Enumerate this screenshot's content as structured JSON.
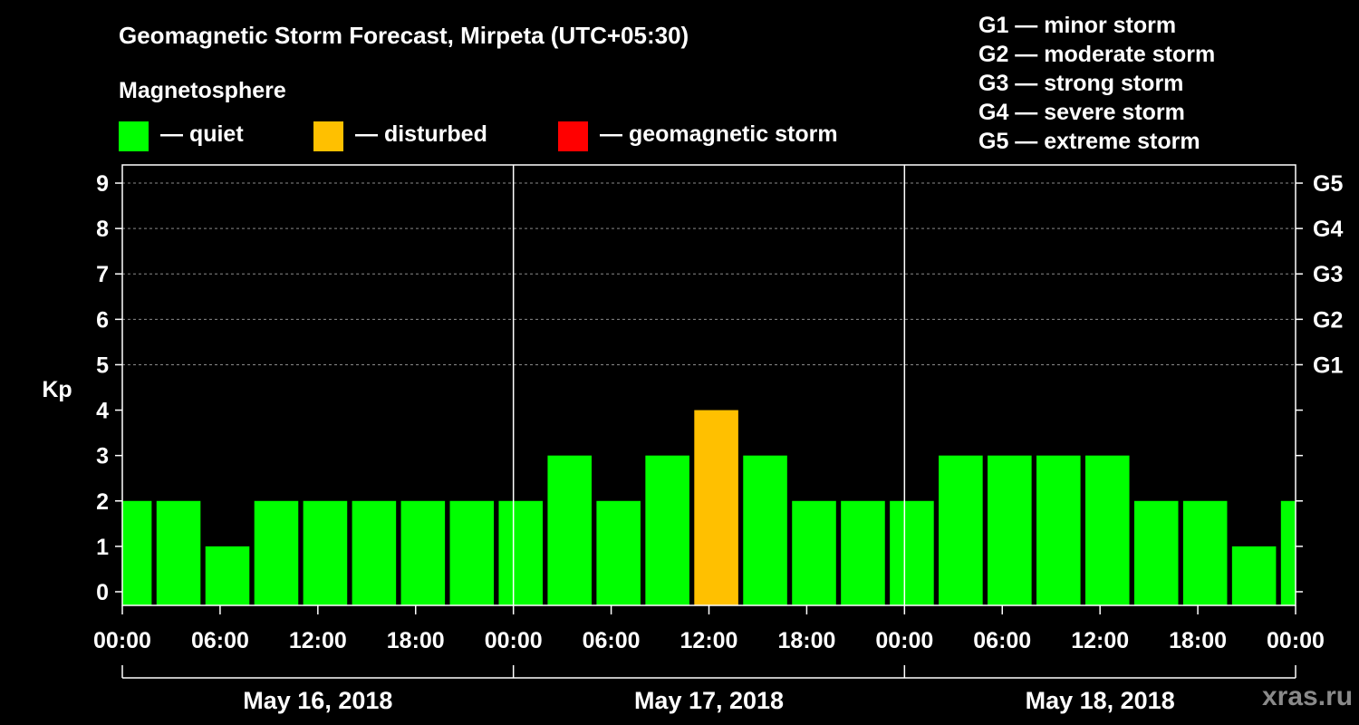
{
  "header": {
    "title": "Geomagnetic Storm Forecast, Mirpeta (UTC+05:30)",
    "magnetosphere_label": "Magnetosphere",
    "legend": [
      {
        "label": "— quiet",
        "color": "#00ff00"
      },
      {
        "label": "— disturbed",
        "color": "#ffc000"
      },
      {
        "label": "— geomagnetic storm",
        "color": "#ff0000"
      }
    ],
    "storm_scale": [
      "G1 — minor storm",
      "G2 — moderate storm",
      "G3 — strong storm",
      "G4 — severe storm",
      "G5 — extreme storm"
    ]
  },
  "watermark": "xras.ru",
  "chart_data": {
    "type": "bar",
    "title": "Geomagnetic Storm Forecast, Mirpeta (UTC+05:30)",
    "ylabel": "Kp",
    "ylim": [
      -0.3,
      9.4
    ],
    "y_ticks": [
      "0",
      "1",
      "2",
      "3",
      "4",
      "5",
      "6",
      "7",
      "8",
      "9"
    ],
    "right_ticks": [
      {
        "kp": 5,
        "label": "G1"
      },
      {
        "kp": 6,
        "label": "G2"
      },
      {
        "kp": 7,
        "label": "G3"
      },
      {
        "kp": 8,
        "label": "G4"
      },
      {
        "kp": 9,
        "label": "G5"
      }
    ],
    "x_range_hours": [
      0,
      72
    ],
    "x_tick_hours": [
      0,
      6,
      12,
      18,
      24,
      30,
      36,
      42,
      48,
      54,
      60,
      66,
      72
    ],
    "x_tick_labels": [
      "00:00",
      "06:00",
      "12:00",
      "18:00",
      "00:00",
      "06:00",
      "12:00",
      "18:00",
      "00:00",
      "06:00",
      "12:00",
      "18:00",
      "00:00"
    ],
    "days": [
      "May 16, 2018",
      "May 17, 2018",
      "May 18, 2018"
    ],
    "day_boundaries_hours": [
      24,
      48
    ],
    "grid_kp": [
      5,
      6,
      7,
      8,
      9
    ],
    "colors": {
      "quiet": "#00ff00",
      "disturbed": "#ffc000",
      "storm": "#ff0000"
    },
    "bars": [
      {
        "start": 0,
        "end": 1.8,
        "kp": 2,
        "level": "quiet"
      },
      {
        "start": 2.1,
        "end": 4.8,
        "kp": 2,
        "level": "quiet"
      },
      {
        "start": 5.1,
        "end": 7.8,
        "kp": 1,
        "level": "quiet"
      },
      {
        "start": 8.1,
        "end": 10.8,
        "kp": 2,
        "level": "quiet"
      },
      {
        "start": 11.1,
        "end": 13.8,
        "kp": 2,
        "level": "quiet"
      },
      {
        "start": 14.1,
        "end": 16.8,
        "kp": 2,
        "level": "quiet"
      },
      {
        "start": 17.1,
        "end": 19.8,
        "kp": 2,
        "level": "quiet"
      },
      {
        "start": 20.1,
        "end": 22.8,
        "kp": 2,
        "level": "quiet"
      },
      {
        "start": 23.1,
        "end": 25.8,
        "kp": 2,
        "level": "quiet"
      },
      {
        "start": 26.1,
        "end": 28.8,
        "kp": 3,
        "level": "quiet"
      },
      {
        "start": 29.1,
        "end": 31.8,
        "kp": 2,
        "level": "quiet"
      },
      {
        "start": 32.1,
        "end": 34.8,
        "kp": 3,
        "level": "quiet"
      },
      {
        "start": 35.1,
        "end": 37.8,
        "kp": 4,
        "level": "disturbed"
      },
      {
        "start": 38.1,
        "end": 40.8,
        "kp": 3,
        "level": "quiet"
      },
      {
        "start": 41.1,
        "end": 43.8,
        "kp": 2,
        "level": "quiet"
      },
      {
        "start": 44.1,
        "end": 46.8,
        "kp": 2,
        "level": "quiet"
      },
      {
        "start": 47.1,
        "end": 49.8,
        "kp": 2,
        "level": "quiet"
      },
      {
        "start": 50.1,
        "end": 52.8,
        "kp": 3,
        "level": "quiet"
      },
      {
        "start": 53.1,
        "end": 55.8,
        "kp": 3,
        "level": "quiet"
      },
      {
        "start": 56.1,
        "end": 58.8,
        "kp": 3,
        "level": "quiet"
      },
      {
        "start": 59.1,
        "end": 61.8,
        "kp": 3,
        "level": "quiet"
      },
      {
        "start": 62.1,
        "end": 64.8,
        "kp": 2,
        "level": "quiet"
      },
      {
        "start": 65.1,
        "end": 67.8,
        "kp": 2,
        "level": "quiet"
      },
      {
        "start": 68.1,
        "end": 70.8,
        "kp": 1,
        "level": "quiet"
      },
      {
        "start": 71.1,
        "end": 72,
        "kp": 2,
        "level": "quiet"
      }
    ]
  }
}
